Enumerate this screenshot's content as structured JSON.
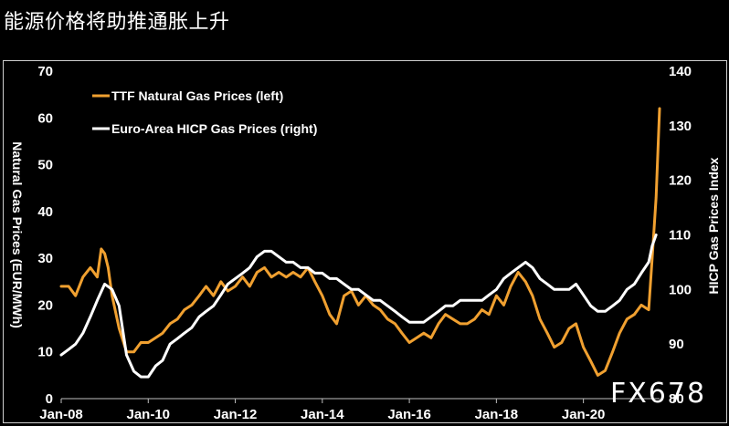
{
  "page": {
    "title": "能源价格将助推通胀上升",
    "watermark": "FX678"
  },
  "chart_data": {
    "type": "line",
    "legend_position": "top-left",
    "ylabel_left": "Natural Gas Prices (EUR/MWh)",
    "ylabel_right": "HICP Gas Prices Index",
    "ylim_left": [
      0,
      70
    ],
    "ylim_right": [
      80,
      140
    ],
    "yticks_left": [
      0,
      10,
      20,
      30,
      40,
      50,
      60,
      70
    ],
    "yticks_right": [
      80,
      90,
      100,
      110,
      120,
      130,
      140
    ],
    "xticks": [
      "Jan-08",
      "Jan-10",
      "Jan-12",
      "Jan-14",
      "Jan-16",
      "Jan-18",
      "Jan-20"
    ],
    "xlim": [
      2008.0,
      2021.75
    ],
    "grid": false,
    "colors": {
      "ttf": "#f0a030",
      "hicp": "#ffffff",
      "background": "#000000"
    },
    "series": [
      {
        "name": "TTF Natural Gas Prices (left)",
        "axis": "left",
        "x": [
          2008.0,
          2008.17,
          2008.33,
          2008.5,
          2008.67,
          2008.83,
          2008.92,
          2009.0,
          2009.08,
          2009.17,
          2009.33,
          2009.5,
          2009.67,
          2009.83,
          2010.0,
          2010.17,
          2010.33,
          2010.5,
          2010.67,
          2010.83,
          2011.0,
          2011.17,
          2011.33,
          2011.5,
          2011.67,
          2011.83,
          2012.0,
          2012.17,
          2012.33,
          2012.5,
          2012.67,
          2012.83,
          2013.0,
          2013.17,
          2013.33,
          2013.5,
          2013.67,
          2013.83,
          2014.0,
          2014.17,
          2014.33,
          2014.5,
          2014.67,
          2014.83,
          2015.0,
          2015.17,
          2015.33,
          2015.5,
          2015.67,
          2015.83,
          2016.0,
          2016.17,
          2016.33,
          2016.5,
          2016.67,
          2016.83,
          2017.0,
          2017.17,
          2017.33,
          2017.5,
          2017.67,
          2017.83,
          2018.0,
          2018.17,
          2018.33,
          2018.5,
          2018.67,
          2018.83,
          2019.0,
          2019.17,
          2019.33,
          2019.5,
          2019.67,
          2019.83,
          2020.0,
          2020.17,
          2020.33,
          2020.5,
          2020.67,
          2020.83,
          2021.0,
          2021.17,
          2021.33,
          2021.5,
          2021.58,
          2021.67,
          2021.75
        ],
        "values": [
          24,
          24,
          22,
          26,
          28,
          26,
          32,
          31,
          28,
          22,
          15,
          10,
          10,
          12,
          12,
          13,
          14,
          16,
          17,
          19,
          20,
          22,
          24,
          22,
          25,
          23,
          24,
          26,
          24,
          27,
          28,
          26,
          27,
          26,
          27,
          26,
          28,
          25,
          22,
          18,
          16,
          22,
          23,
          20,
          22,
          20,
          19,
          17,
          16,
          14,
          12,
          13,
          14,
          13,
          16,
          18,
          17,
          16,
          16,
          17,
          19,
          18,
          22,
          20,
          24,
          27,
          25,
          22,
          17,
          14,
          11,
          12,
          15,
          16,
          11,
          8,
          5,
          6,
          10,
          14,
          17,
          18,
          20,
          19,
          30,
          43,
          62
        ]
      },
      {
        "name": "Euro-Area HICP Gas Prices (right)",
        "axis": "right",
        "x": [
          2008.0,
          2008.17,
          2008.33,
          2008.5,
          2008.67,
          2008.83,
          2009.0,
          2009.17,
          2009.33,
          2009.5,
          2009.67,
          2009.83,
          2010.0,
          2010.17,
          2010.33,
          2010.5,
          2010.67,
          2010.83,
          2011.0,
          2011.17,
          2011.33,
          2011.5,
          2011.67,
          2011.83,
          2012.0,
          2012.17,
          2012.33,
          2012.5,
          2012.67,
          2012.83,
          2013.0,
          2013.17,
          2013.33,
          2013.5,
          2013.67,
          2013.83,
          2014.0,
          2014.17,
          2014.33,
          2014.5,
          2014.67,
          2014.83,
          2015.0,
          2015.17,
          2015.33,
          2015.5,
          2015.67,
          2015.83,
          2016.0,
          2016.17,
          2016.33,
          2016.5,
          2016.67,
          2016.83,
          2017.0,
          2017.17,
          2017.33,
          2017.5,
          2017.67,
          2017.83,
          2018.0,
          2018.17,
          2018.33,
          2018.5,
          2018.67,
          2018.83,
          2019.0,
          2019.17,
          2019.33,
          2019.5,
          2019.67,
          2019.83,
          2020.0,
          2020.17,
          2020.33,
          2020.5,
          2020.67,
          2020.83,
          2021.0,
          2021.17,
          2021.33,
          2021.5,
          2021.58,
          2021.67
        ],
        "values": [
          88,
          89,
          90,
          92,
          95,
          98,
          101,
          100,
          97,
          88,
          85,
          84,
          84,
          86,
          87,
          90,
          91,
          92,
          93,
          95,
          96,
          97,
          99,
          101,
          102,
          103,
          104,
          106,
          107,
          107,
          106,
          105,
          105,
          104,
          104,
          103,
          103,
          102,
          102,
          101,
          100,
          100,
          99,
          98,
          98,
          97,
          96,
          95,
          94,
          94,
          94,
          95,
          96,
          97,
          97,
          98,
          98,
          98,
          98,
          99,
          100,
          102,
          103,
          104,
          105,
          104,
          102,
          101,
          100,
          100,
          100,
          101,
          99,
          97,
          96,
          96,
          97,
          98,
          100,
          101,
          103,
          105,
          108,
          110
        ]
      }
    ]
  }
}
